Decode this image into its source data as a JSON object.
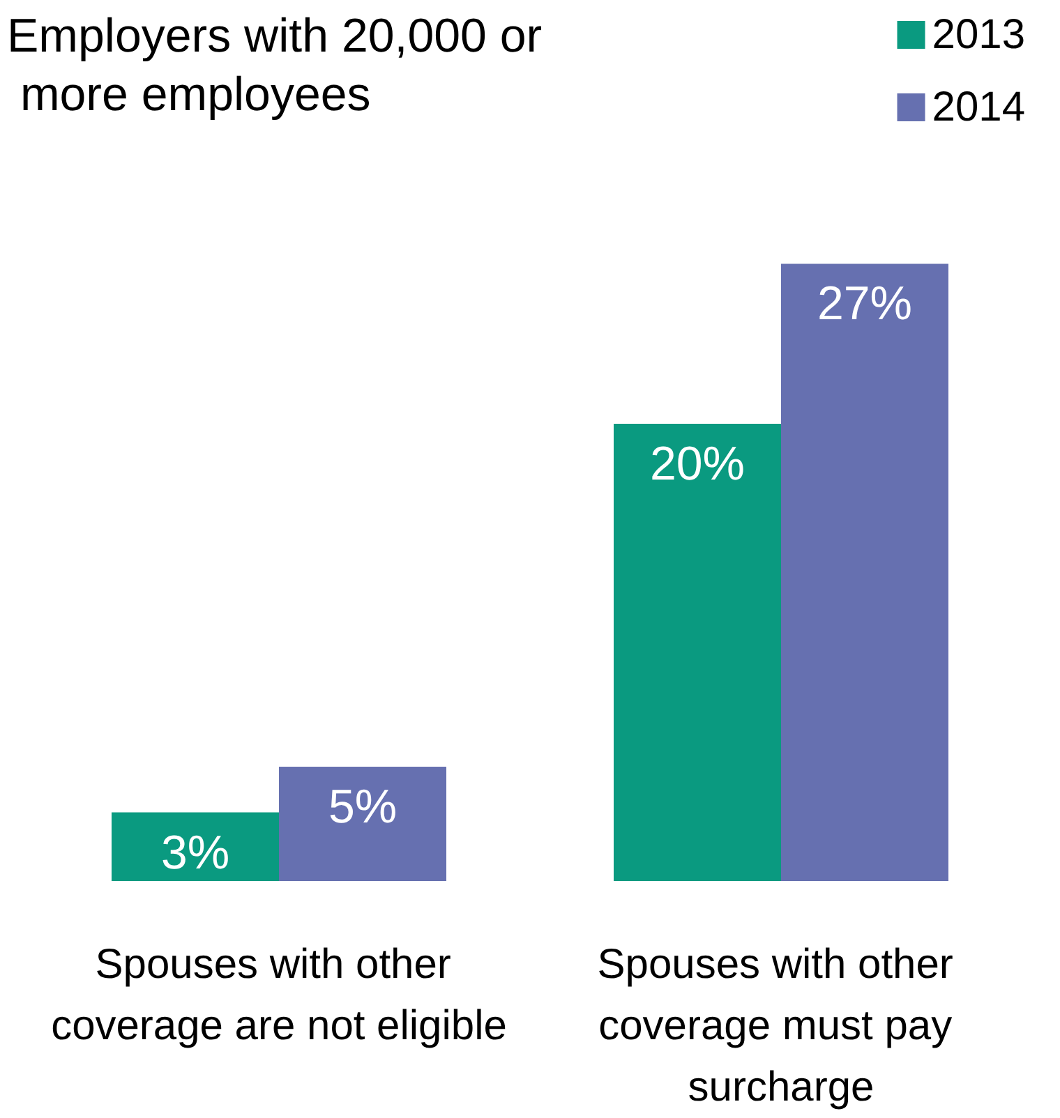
{
  "chart_data": {
    "type": "bar",
    "title": "Employers with 20,000 or more employees",
    "categories": [
      "Spouses with other coverage are not eligible",
      "Spouses with other coverage must pay surcharge"
    ],
    "series": [
      {
        "name": "2013",
        "color": "#0a9a80",
        "values": [
          3,
          20
        ],
        "value_labels": [
          "3%",
          "20%"
        ]
      },
      {
        "name": "2014",
        "color": "#6670b0",
        "values": [
          5,
          27
        ],
        "value_labels": [
          "5%",
          "27%"
        ]
      }
    ],
    "legend": "top right"
  }
}
